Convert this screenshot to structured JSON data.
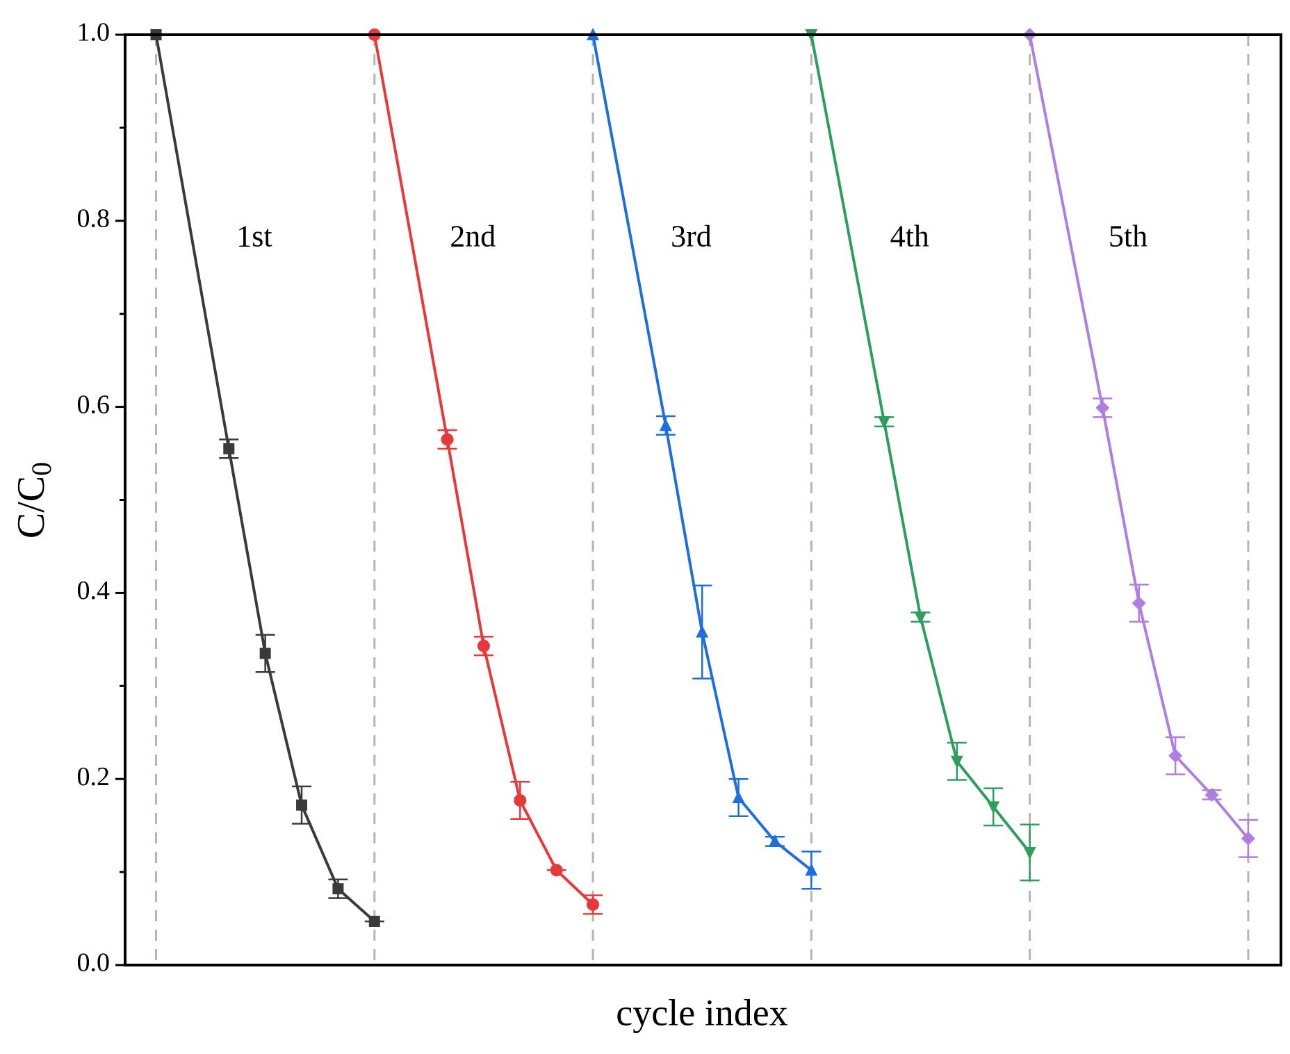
{
  "chart_data": {
    "type": "line",
    "xlabel": "cycle index",
    "ylabel": {
      "main": "C/C",
      "sub": "0"
    },
    "xlim": [
      -0.85,
      30.9
    ],
    "ylim": [
      0,
      1
    ],
    "yticks": [
      {
        "value": 0,
        "label": "0.0"
      },
      0.2,
      0.4,
      0.6,
      0.8,
      {
        "value": 1,
        "label": "1.0"
      }
    ],
    "yminor_ticks": [
      0.1,
      0.3,
      0.5,
      0.7,
      0.9
    ],
    "dividers": [
      0,
      6,
      12,
      18,
      24,
      30
    ],
    "series": [
      {
        "name": "1st",
        "color": "#3a3a3a",
        "marker": "square",
        "x": [
          0,
          2,
          3,
          4,
          5,
          6
        ],
        "values": [
          1.0,
          0.555,
          0.335,
          0.172,
          0.082,
          0.047
        ],
        "errors": [
          0,
          0.01,
          0.02,
          0.02,
          0.01,
          0
        ]
      },
      {
        "name": "2nd",
        "color": "#e8393a",
        "marker": "circle",
        "x": [
          6,
          8,
          9,
          10,
          11,
          12
        ],
        "values": [
          1.0,
          0.565,
          0.343,
          0.177,
          0.102,
          0.065
        ],
        "errors": [
          0,
          0.01,
          0.01,
          0.02,
          0,
          0.01
        ]
      },
      {
        "name": "3rd",
        "color": "#1f6ee0",
        "marker": "triangle-up",
        "x": [
          12,
          14,
          15,
          16,
          17,
          18
        ],
        "values": [
          1.0,
          0.58,
          0.358,
          0.18,
          0.133,
          0.102
        ],
        "errors": [
          0,
          0.01,
          0.05,
          0.02,
          0.005,
          0.02
        ]
      },
      {
        "name": "4th",
        "color": "#2e9e5c",
        "marker": "triangle-down",
        "x": [
          18,
          20,
          21,
          22,
          23,
          24
        ],
        "values": [
          1.0,
          0.584,
          0.374,
          0.219,
          0.17,
          0.121
        ],
        "errors": [
          0,
          0.005,
          0.005,
          0.02,
          0.02,
          0.03
        ]
      },
      {
        "name": "5th",
        "color": "#b07ee0",
        "marker": "diamond",
        "x": [
          24,
          26,
          27,
          28,
          29,
          30
        ],
        "values": [
          1.0,
          0.599,
          0.389,
          0.225,
          0.183,
          0.136
        ],
        "errors": [
          0,
          0.01,
          0.02,
          0.02,
          0.005,
          0.02
        ]
      }
    ]
  }
}
